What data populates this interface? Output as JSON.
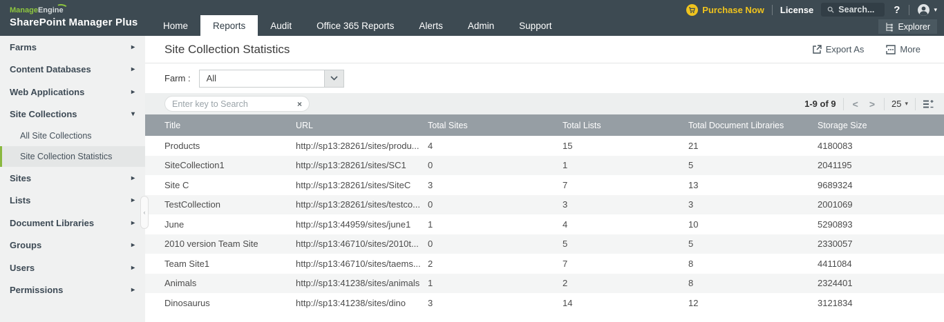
{
  "colors": {
    "header_bg": "#3d4a52",
    "accent_green": "#8ec63f",
    "accent_yellow": "#efc31e",
    "table_header_bg": "#969ea4",
    "row_alt_bg": "#f4f5f5",
    "sidebar_bg": "#f0f1f1",
    "sidebar_selected_bg": "#e4e6e6"
  },
  "header": {
    "brand_part1": "Manage",
    "brand_part2": "Engine",
    "product_name": "SharePoint Manager Plus",
    "nav": [
      {
        "label": "Home",
        "active": false
      },
      {
        "label": "Reports",
        "active": true
      },
      {
        "label": "Audit",
        "active": false
      },
      {
        "label": "Office 365 Reports",
        "active": false
      },
      {
        "label": "Alerts",
        "active": false
      },
      {
        "label": "Admin",
        "active": false
      },
      {
        "label": "Support",
        "active": false
      }
    ],
    "purchase_now": "Purchase Now",
    "license": "License",
    "search_placeholder": "Search...",
    "help": "?",
    "explorer": "Explorer"
  },
  "sidebar": {
    "items": [
      {
        "label": "Farms",
        "arrow": "right"
      },
      {
        "label": "Content Databases",
        "arrow": "right"
      },
      {
        "label": "Web Applications",
        "arrow": "right"
      },
      {
        "label": "Site Collections",
        "arrow": "down",
        "children": [
          {
            "label": "All Site Collections",
            "selected": false
          },
          {
            "label": "Site Collection Statistics",
            "selected": true
          }
        ]
      },
      {
        "label": "Sites",
        "arrow": "right"
      },
      {
        "label": "Lists",
        "arrow": "right"
      },
      {
        "label": "Document Libraries",
        "arrow": "right"
      },
      {
        "label": "Groups",
        "arrow": "right"
      },
      {
        "label": "Users",
        "arrow": "right"
      },
      {
        "label": "Permissions",
        "arrow": "right"
      }
    ]
  },
  "main": {
    "title": "Site Collection Statistics",
    "export_as_label": "Export As",
    "more_label": "More",
    "farm_label": "Farm :",
    "farm_value": "All",
    "search_placeholder": "Enter key to Search",
    "clear_label": "×",
    "pagination": {
      "range_text": "1-9 of 9",
      "prev": "<",
      "next": ">",
      "page_size": "25"
    },
    "table": {
      "columns": [
        "Title",
        "URL",
        "Total Sites",
        "Total Lists",
        "Total Document Libraries",
        "Storage Size"
      ],
      "rows": [
        [
          "Products",
          "http://sp13:28261/sites/produ...",
          "4",
          "15",
          "21",
          "4180083"
        ],
        [
          "SiteCollection1",
          "http://sp13:28261/sites/SC1",
          "0",
          "1",
          "5",
          "2041195"
        ],
        [
          "Site C",
          "http://sp13:28261/sites/SiteC",
          "3",
          "7",
          "13",
          "9689324"
        ],
        [
          "TestCollection",
          "http://sp13:28261/sites/testco...",
          "0",
          "3",
          "3",
          "2001069"
        ],
        [
          "June",
          "http://sp13:44959/sites/june1",
          "1",
          "4",
          "10",
          "5290893"
        ],
        [
          "2010 version Team Site",
          "http://sp13:46710/sites/2010t...",
          "0",
          "5",
          "5",
          "2330057"
        ],
        [
          "Team Site1",
          "http://sp13:46710/sites/taems...",
          "2",
          "7",
          "8",
          "4411084"
        ],
        [
          "Animals",
          "http://sp13:41238/sites/animals",
          "1",
          "2",
          "8",
          "2324401"
        ],
        [
          "Dinosaurus",
          "http://sp13:41238/sites/dino",
          "3",
          "14",
          "12",
          "3121834"
        ]
      ]
    }
  }
}
